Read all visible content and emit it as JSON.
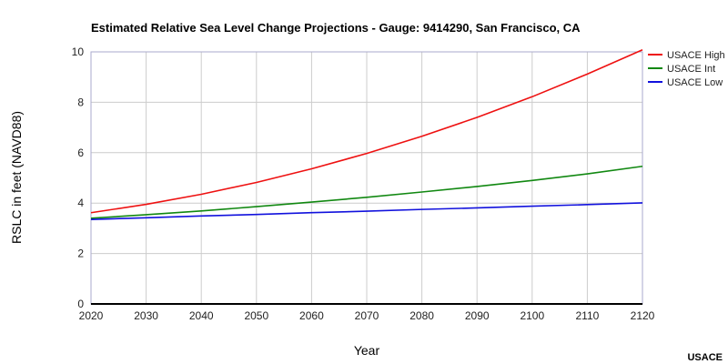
{
  "chart_data": {
    "type": "line",
    "title": "Estimated Relative Sea Level Change Projections - Gauge: 9414290, San Francisco, CA",
    "xlabel": "Year",
    "ylabel": "RSLC in feet (NAVD88)",
    "xlim": [
      2020,
      2120
    ],
    "ylim": [
      0,
      10
    ],
    "x_ticks": [
      "2020",
      "2030",
      "2040",
      "2050",
      "2060",
      "2070",
      "2080",
      "2090",
      "2100",
      "2110",
      "2120"
    ],
    "y_ticks": [
      "0",
      "2",
      "4",
      "6",
      "8",
      "10"
    ],
    "grid": true,
    "legend_position": "right",
    "x": [
      2020,
      2030,
      2040,
      2050,
      2060,
      2070,
      2080,
      2090,
      2100,
      2110,
      2120
    ],
    "series": [
      {
        "name": "USACE High",
        "color": "#ee1111",
        "values": [
          3.62,
          3.95,
          4.35,
          4.82,
          5.36,
          5.97,
          6.65,
          7.4,
          8.22,
          9.12,
          10.08
        ]
      },
      {
        "name": "USACE Int",
        "color": "#118811",
        "values": [
          3.4,
          3.54,
          3.69,
          3.86,
          4.04,
          4.23,
          4.44,
          4.66,
          4.9,
          5.16,
          5.46
        ]
      },
      {
        "name": "USACE Low",
        "color": "#1111dd",
        "values": [
          3.35,
          3.42,
          3.49,
          3.55,
          3.62,
          3.68,
          3.75,
          3.81,
          3.88,
          3.94,
          4.01
        ]
      }
    ]
  },
  "credit": "USACE"
}
